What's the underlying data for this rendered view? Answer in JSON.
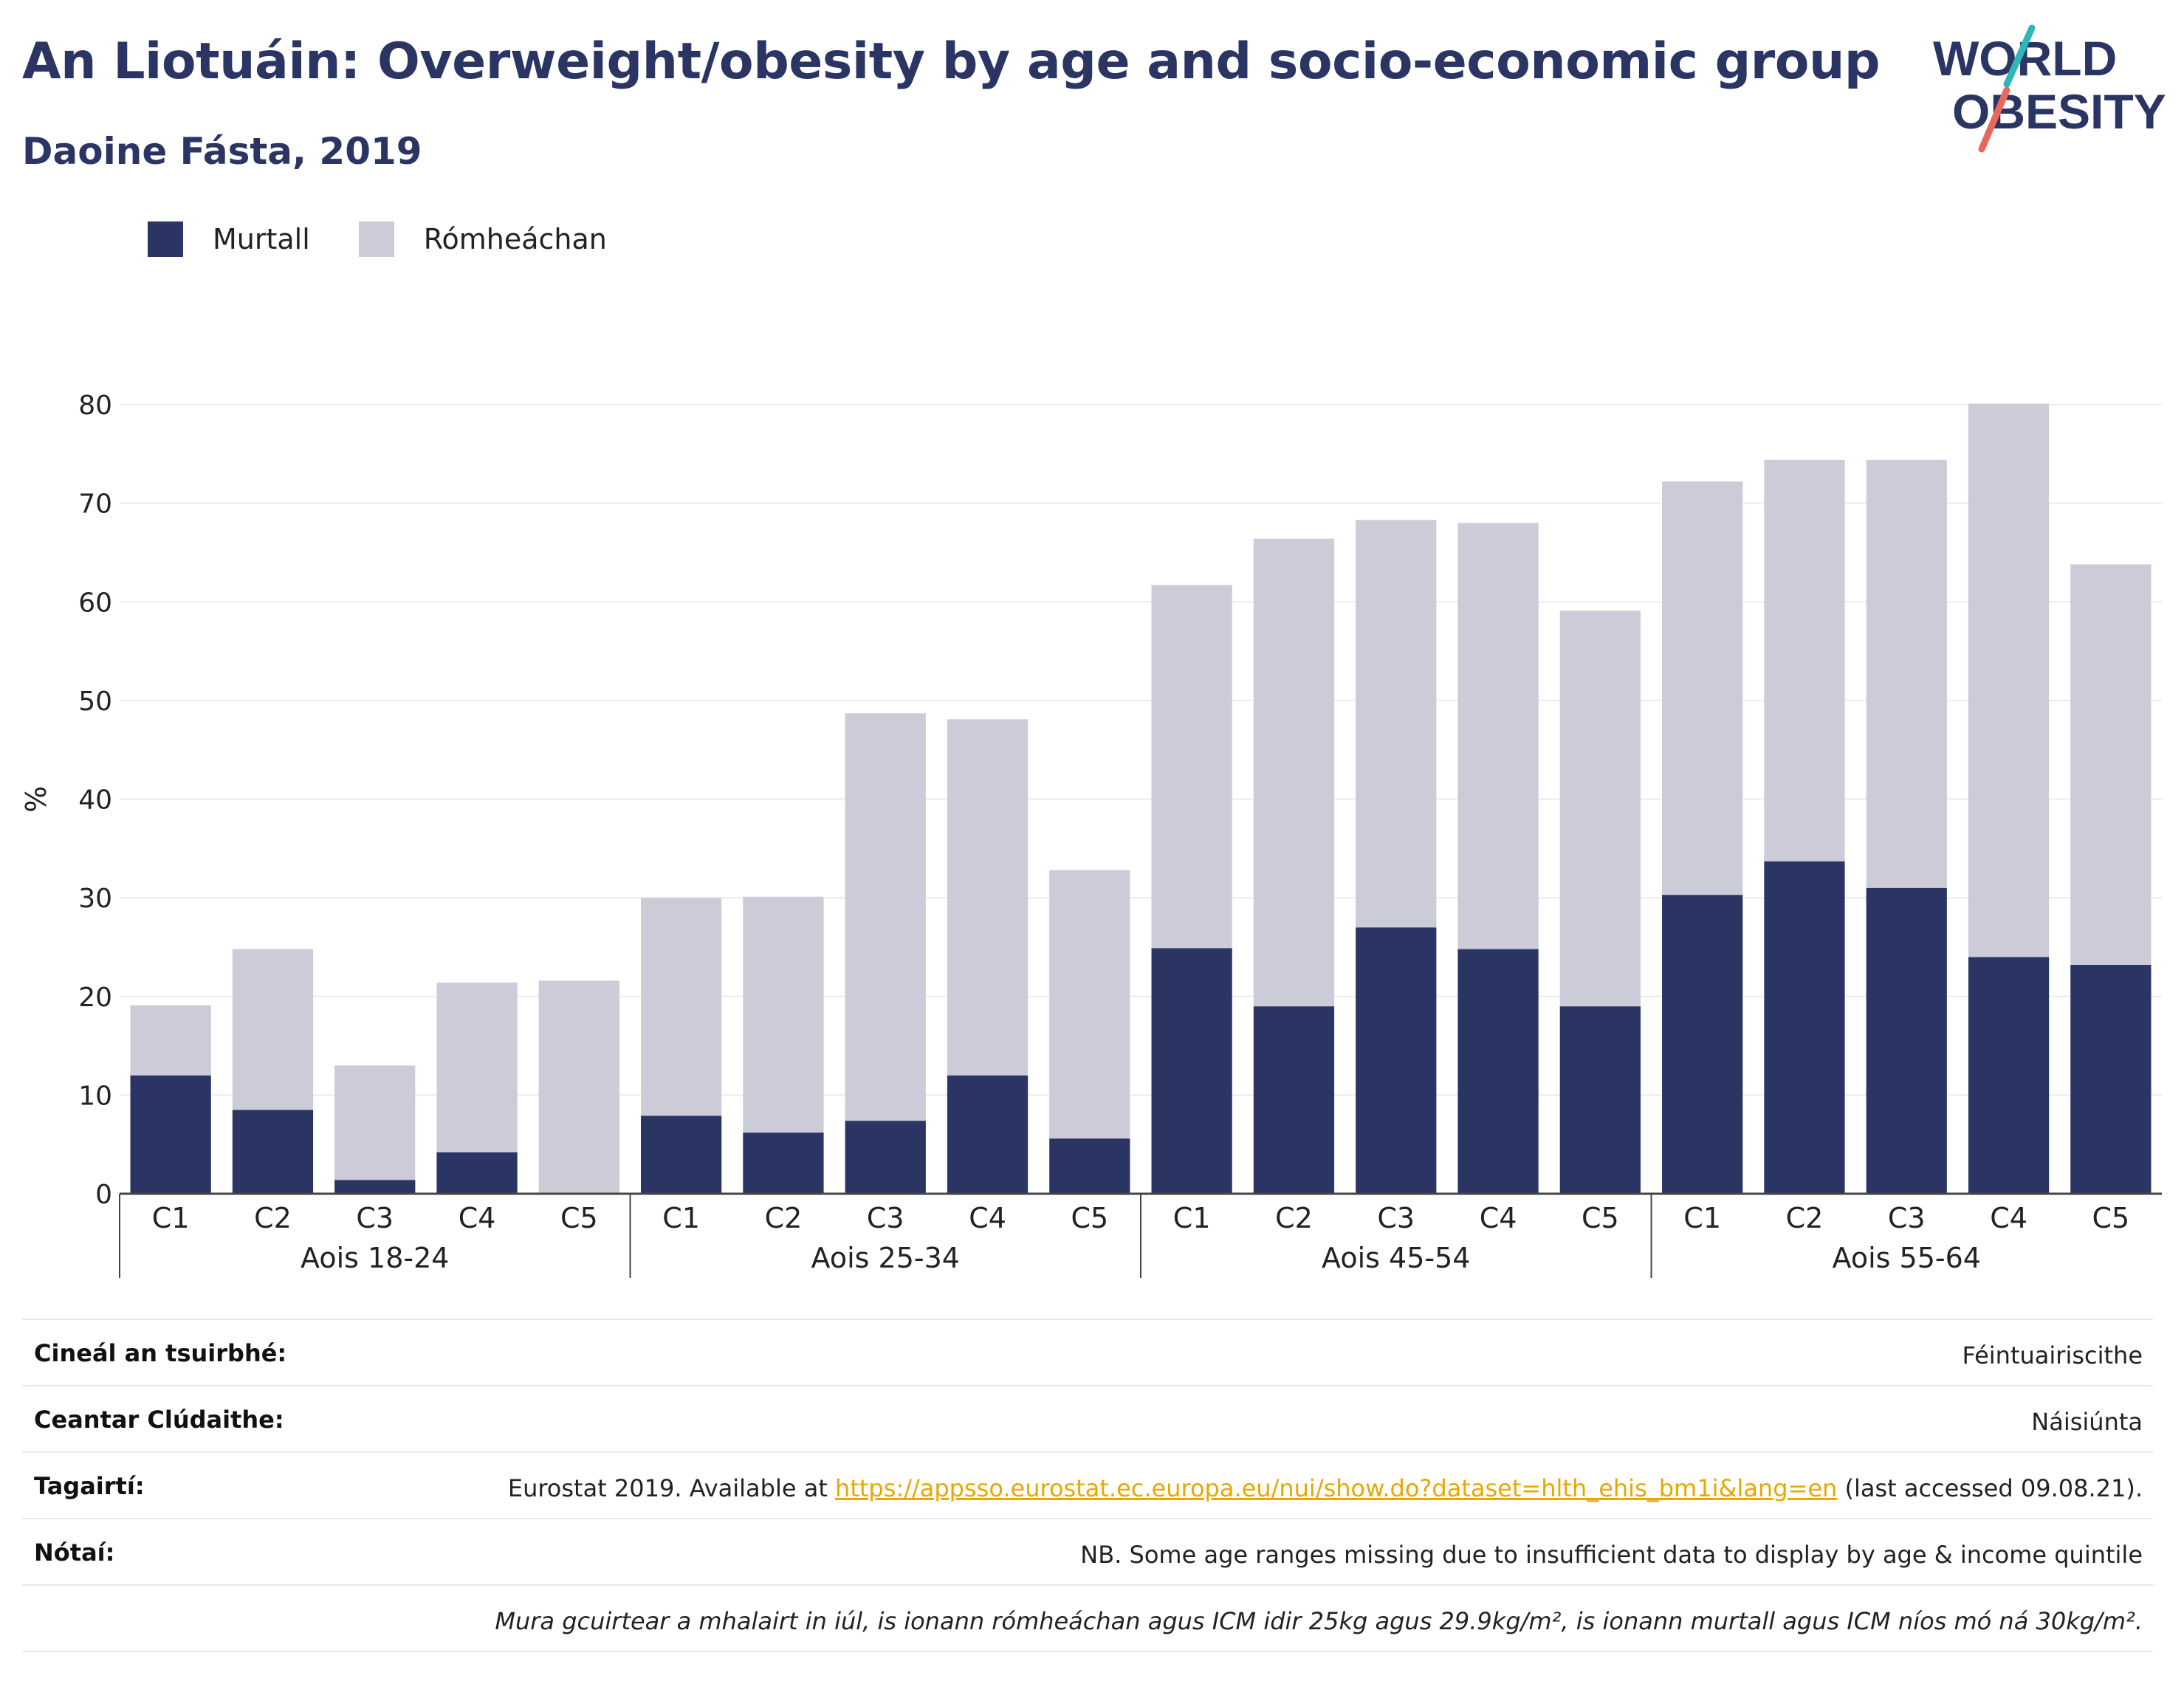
{
  "header": {
    "title": "An Liotuáin: Overweight/obesity by age and socio-economic group",
    "subtitle": "Daoine Fásta, 2019",
    "logo_text": [
      "WORLD",
      "OBESITY"
    ]
  },
  "colors": {
    "obese": "#2b3564",
    "overweight": "#cbccd8",
    "title": "#2b3564",
    "link": "#e8a800",
    "logo_teal": "#2fb6b9",
    "logo_coral": "#e9675b"
  },
  "legend": {
    "obese_label": "Murtall",
    "overweight_label": "Rómheáchan"
  },
  "chart_data": {
    "type": "bar",
    "stacked": true,
    "ylabel": "%",
    "ylim": [
      0,
      80
    ],
    "yticks": [
      0,
      10,
      20,
      30,
      40,
      50,
      60,
      70,
      80
    ],
    "grid": true,
    "legend_position": "top-left",
    "groups": [
      "Aois 18-24",
      "Aois 25-34",
      "Aois 45-54",
      "Aois 55-64"
    ],
    "categories": [
      "C1",
      "C2",
      "C3",
      "C4",
      "C5"
    ],
    "series": [
      {
        "name": "Murtall",
        "values": [
          [
            12,
            8.5,
            1.4,
            4.2,
            0
          ],
          [
            7.9,
            6.2,
            7.4,
            12,
            5.6
          ],
          [
            24.9,
            19,
            27,
            24.8,
            19
          ],
          [
            30.3,
            33.7,
            31,
            24,
            23.2
          ]
        ]
      },
      {
        "name": "Rómheáchan",
        "values": [
          [
            7.1,
            16.3,
            11.6,
            17.2,
            21.6
          ],
          [
            22.1,
            23.9,
            41.3,
            36.1,
            27.2
          ],
          [
            36.8,
            47.4,
            41.3,
            43.2,
            40.1
          ],
          [
            41.9,
            40.7,
            43.4,
            56.1,
            40.6
          ]
        ]
      }
    ]
  },
  "info": {
    "survey_label": "Cineál an tsuirbhé:",
    "survey_value": "Féintuairiscithe",
    "coverage_label": "Ceantar Clúdaithe:",
    "coverage_value": "Náisiúnta",
    "refs_label": "Tagairtí:",
    "refs_prefix": "Eurostat 2019. Available at ",
    "refs_link": "https://appsso.eurostat.ec.europa.eu/nui/show.do?dataset=hlth_ehis_bm1i&lang=en",
    "refs_suffix": " (last accessed 09.08.21).",
    "notes_label": "Nótaí:",
    "notes_value": "NB. Some age ranges missing due to insufficient data to display by age & income quintile",
    "footnote": "Mura gcuirtear a mhalairt in iúl, is ionann rómheáchan agus ICM idir 25kg agus 29.9kg/m², is ionann murtall agus ICM níos mó ná 30kg/m²."
  }
}
